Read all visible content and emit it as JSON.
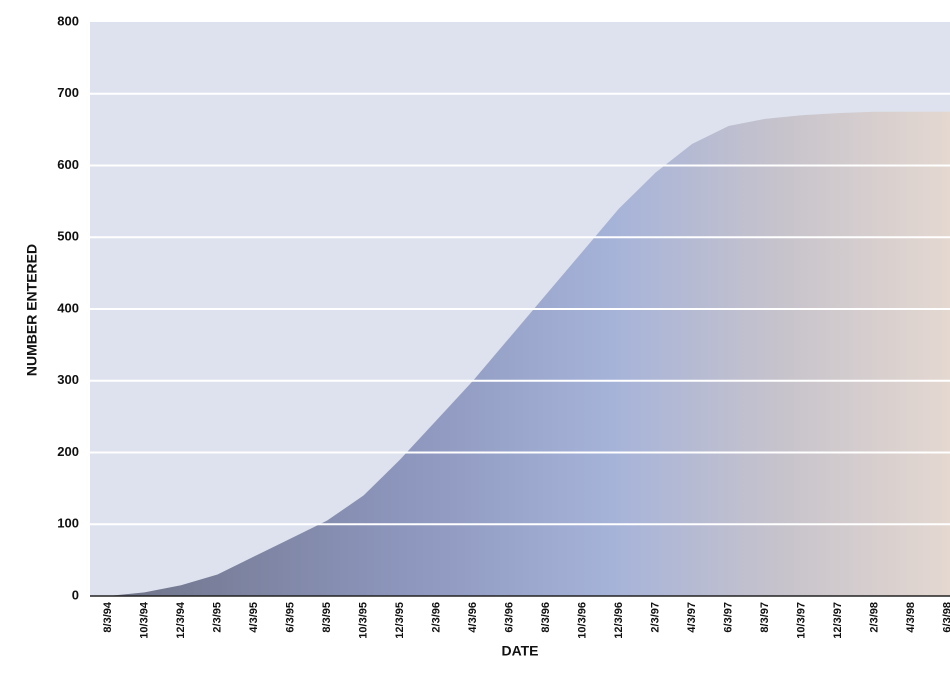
{
  "chart_data": {
    "type": "area",
    "x_label": "DATE",
    "y_label": "NUMBER ENTERED",
    "categories": [
      "8/3/94",
      "10/3/94",
      "12/3/94",
      "2/3/95",
      "4/3/95",
      "6/3/95",
      "8/3/95",
      "10/3/95",
      "12/3/95",
      "2/3/96",
      "4/3/96",
      "6/3/96",
      "8/3/96",
      "10/3/96",
      "12/3/96",
      "2/3/97",
      "4/3/97",
      "6/3/97",
      "8/3/97",
      "10/3/97",
      "12/3/97",
      "2/3/98",
      "4/3/98",
      "6/3/98"
    ],
    "values": [
      0,
      5,
      15,
      30,
      55,
      80,
      105,
      140,
      190,
      245,
      300,
      360,
      420,
      480,
      540,
      590,
      630,
      655,
      665,
      670,
      673,
      675,
      675,
      675
    ],
    "color": "#8f9bc4",
    "ylim": [
      0,
      800
    ],
    "yticks": [
      0,
      100,
      200,
      300,
      400,
      500,
      600,
      700,
      800
    ],
    "grid": true
  }
}
